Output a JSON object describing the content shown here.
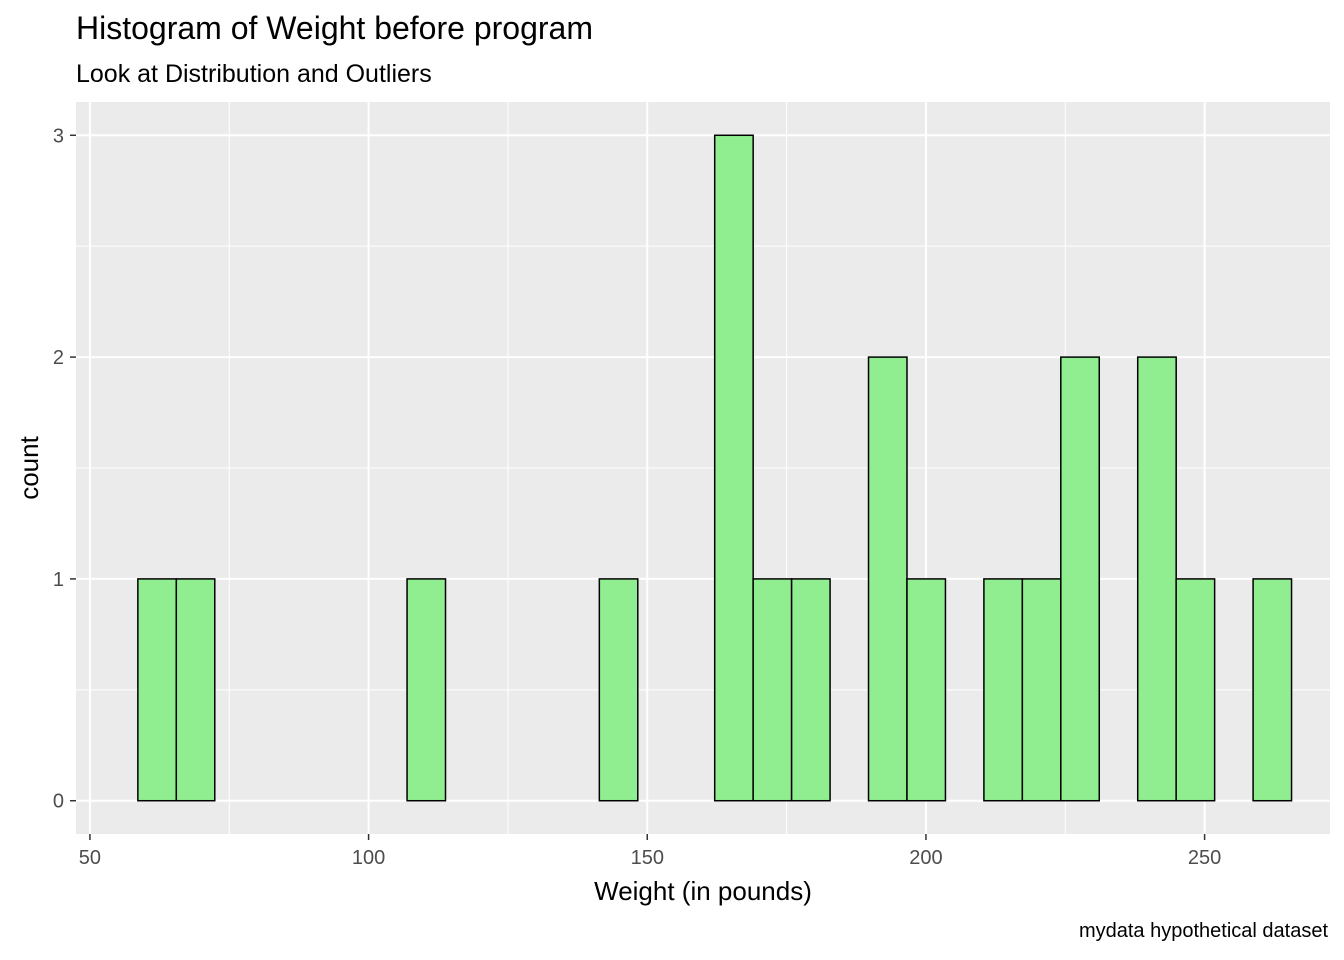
{
  "chart_data": {
    "type": "bar",
    "title": "Histogram of Weight before program",
    "subtitle": "Look at Distribution and Outliers",
    "caption": "mydata hypothetical dataset",
    "xlabel": "Weight (in pounds)",
    "ylabel": "count",
    "xlim": [
      47.5,
      272.5
    ],
    "ylim": [
      -0.15,
      3.15
    ],
    "xticks": [
      50,
      100,
      150,
      200,
      250
    ],
    "yticks": [
      0,
      1,
      2,
      3
    ],
    "grid": true,
    "bin_width": 6.9,
    "bins": [
      {
        "start": 58.6,
        "count": 1
      },
      {
        "start": 65.5,
        "count": 1
      },
      {
        "start": 72.4,
        "count": 0
      },
      {
        "start": 79.3,
        "count": 0
      },
      {
        "start": 86.2,
        "count": 0
      },
      {
        "start": 93.1,
        "count": 0
      },
      {
        "start": 100.0,
        "count": 0
      },
      {
        "start": 106.9,
        "count": 1
      },
      {
        "start": 113.8,
        "count": 0
      },
      {
        "start": 120.7,
        "count": 0
      },
      {
        "start": 127.6,
        "count": 0
      },
      {
        "start": 134.5,
        "count": 0
      },
      {
        "start": 141.4,
        "count": 1
      },
      {
        "start": 148.3,
        "count": 0
      },
      {
        "start": 155.2,
        "count": 0
      },
      {
        "start": 162.1,
        "count": 3
      },
      {
        "start": 169.0,
        "count": 1
      },
      {
        "start": 175.9,
        "count": 1
      },
      {
        "start": 182.8,
        "count": 0
      },
      {
        "start": 189.7,
        "count": 2
      },
      {
        "start": 196.6,
        "count": 1
      },
      {
        "start": 203.5,
        "count": 0
      },
      {
        "start": 210.4,
        "count": 1
      },
      {
        "start": 217.3,
        "count": 1
      },
      {
        "start": 224.2,
        "count": 2
      },
      {
        "start": 231.1,
        "count": 0
      },
      {
        "start": 238.0,
        "count": 2
      },
      {
        "start": 244.9,
        "count": 1
      },
      {
        "start": 251.8,
        "count": 0
      },
      {
        "start": 258.7,
        "count": 1
      }
    ],
    "bar_fill": "#90EE90",
    "bar_stroke": "#000000",
    "panel_background": "#EBEBEB",
    "grid_color": "#FFFFFF"
  }
}
